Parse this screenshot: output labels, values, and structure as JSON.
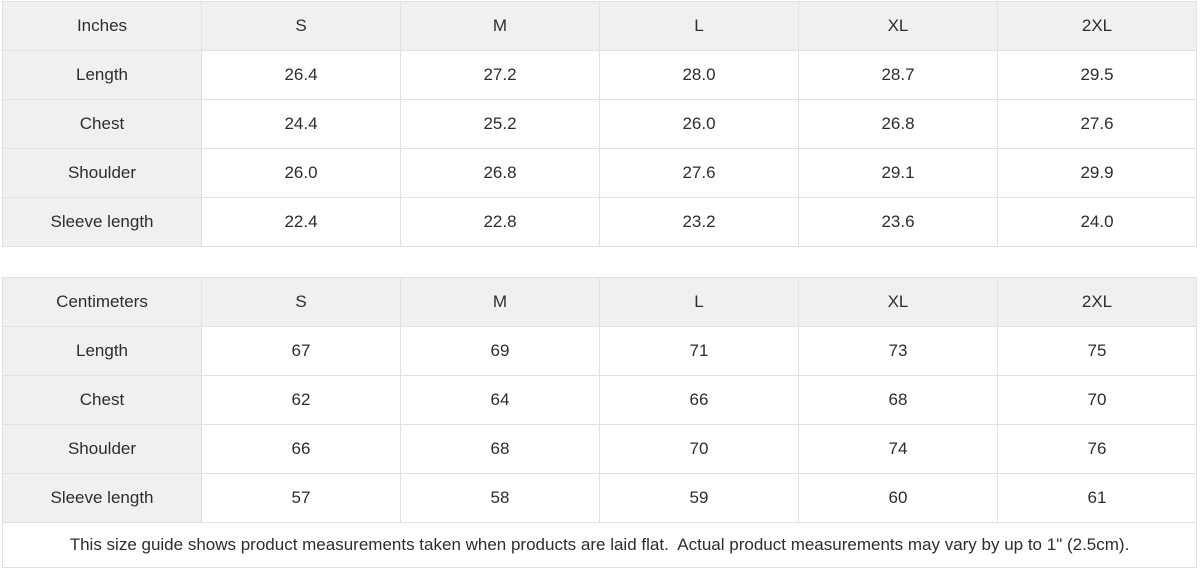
{
  "theme": {
    "page_bg": "#ffffff",
    "cell_bg": "#ffffff",
    "label_bg": "#f0f0f0",
    "border_color": "#e1e1e1",
    "text_color": "#2d2d2d"
  },
  "size_guide": {
    "tables": [
      {
        "unit_label": "Inches",
        "sizes": [
          "S",
          "M",
          "L",
          "XL",
          "2XL"
        ],
        "rows": [
          {
            "label": "Length",
            "values": [
              "26.4",
              "27.2",
              "28.0",
              "28.7",
              "29.5"
            ]
          },
          {
            "label": "Chest",
            "values": [
              "24.4",
              "25.2",
              "26.0",
              "26.8",
              "27.6"
            ]
          },
          {
            "label": "Shoulder",
            "values": [
              "26.0",
              "26.8",
              "27.6",
              "29.1",
              "29.9"
            ]
          },
          {
            "label": "Sleeve length",
            "values": [
              "22.4",
              "22.8",
              "23.2",
              "23.6",
              "24.0"
            ]
          }
        ]
      },
      {
        "unit_label": "Centimeters",
        "sizes": [
          "S",
          "M",
          "L",
          "XL",
          "2XL"
        ],
        "rows": [
          {
            "label": "Length",
            "values": [
              "67",
              "69",
              "71",
              "73",
              "75"
            ]
          },
          {
            "label": "Chest",
            "values": [
              "62",
              "64",
              "66",
              "68",
              "70"
            ]
          },
          {
            "label": "Shoulder",
            "values": [
              "66",
              "68",
              "70",
              "74",
              "76"
            ]
          },
          {
            "label": "Sleeve length",
            "values": [
              "57",
              "58",
              "59",
              "60",
              "61"
            ]
          }
        ]
      }
    ],
    "footnote": "This size guide shows product measurements taken when products are laid flat.  Actual product measurements may vary by up to 1\" (2.5cm)."
  }
}
